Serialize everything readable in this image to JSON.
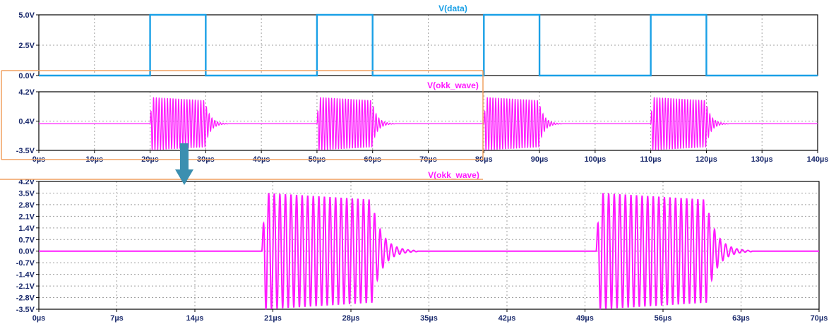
{
  "colors": {
    "data_trace": "#1aa0e6",
    "okk_trace": "#ff19ff",
    "title_data": "#1aa0e6",
    "title_okk": "#ff19ff",
    "zoom_box": "#f0a060",
    "arrow": "#3b8fb0",
    "axis_text": "#1a2a6c",
    "grid": "#a0a0a0"
  },
  "chart_data": [
    {
      "type": "line",
      "title": "V(data)",
      "x_unit": "µs",
      "xlim": [
        0,
        140
      ],
      "ylim": [
        0,
        5
      ],
      "y_ticks": [
        "5.0V",
        "2.5V",
        "0.0V"
      ],
      "x_ticks": [],
      "grid": true,
      "series": [
        {
          "name": "V(data)",
          "description_free": true,
          "high_intervals_us": [
            [
              20,
              30
            ],
            [
              50,
              60
            ],
            [
              80,
              90
            ],
            [
              110,
              120
            ]
          ],
          "low_value": 0.0,
          "high_value": 5.0
        }
      ]
    },
    {
      "type": "line",
      "title": "V(okk_wave)",
      "x_unit": "µs",
      "xlim": [
        0,
        140
      ],
      "ylim": [
        -3.5,
        4.2
      ],
      "y_ticks": [
        "4.2V",
        "0.4V",
        "-3.5V"
      ],
      "x_ticks": [
        "0µs",
        "10µs",
        "20µs",
        "30µs",
        "40µs",
        "50µs",
        "60µs",
        "70µs",
        "80µs",
        "90µs",
        "100µs",
        "110µs",
        "120µs",
        "130µs",
        "140µs"
      ],
      "grid": true,
      "series": [
        {
          "name": "V(okk_wave)",
          "burst_intervals_us": [
            [
              20,
              30
            ],
            [
              50,
              60
            ],
            [
              80,
              90
            ],
            [
              110,
              120
            ]
          ],
          "amplitude_v": 3.5,
          "baseline_v": 0.0
        }
      ]
    },
    {
      "type": "line",
      "title": "V(okk_wave)",
      "x_unit": "µs",
      "xlim": [
        0,
        70
      ],
      "ylim": [
        -3.5,
        4.2
      ],
      "y_ticks": [
        "4.2V",
        "3.5V",
        "2.8V",
        "2.1V",
        "1.4V",
        "0.7V",
        "0.0V",
        "-0.7V",
        "-1.4V",
        "-2.1V",
        "-2.8V",
        "-3.5V"
      ],
      "x_ticks": [
        "0µs",
        "7µs",
        "14µs",
        "21µs",
        "28µs",
        "35µs",
        "42µs",
        "49µs",
        "56µs",
        "63µs",
        "70µs"
      ],
      "grid": true,
      "series": [
        {
          "name": "V(okk_wave)",
          "burst_intervals_us": [
            [
              20,
              30
            ],
            [
              50,
              60
            ]
          ],
          "amplitude_v": 3.5,
          "baseline_v": 0.0
        }
      ]
    }
  ]
}
